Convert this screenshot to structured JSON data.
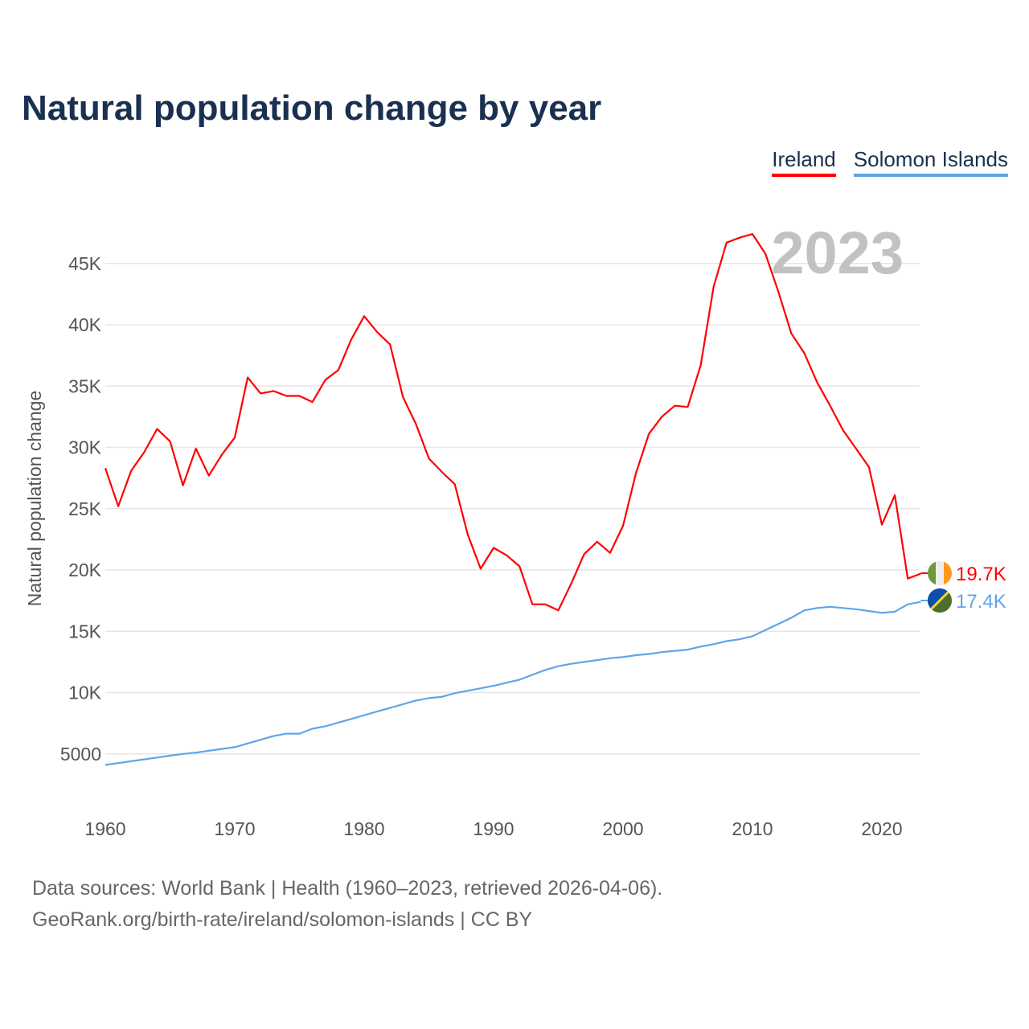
{
  "chart_data": {
    "type": "line",
    "title": "Natural population change by year",
    "ylabel": "Natural population change",
    "xlabel": "",
    "year_badge": "2023",
    "ylim": [
      0,
      47500
    ],
    "xlim": [
      1960,
      2023
    ],
    "grid": true,
    "legend_position": "top-right",
    "yticks": [
      5000,
      10000,
      15000,
      20000,
      25000,
      30000,
      35000,
      40000,
      45000
    ],
    "ytick_labels": [
      "5000",
      "10K",
      "15K",
      "20K",
      "25K",
      "30K",
      "35K",
      "40K",
      "45K"
    ],
    "xticks": [
      1960,
      1970,
      1980,
      1990,
      2000,
      2010,
      2020
    ],
    "xtick_labels": [
      "1960",
      "1970",
      "1980",
      "1990",
      "2000",
      "2010",
      "2020"
    ],
    "x_start": 1960,
    "series": [
      {
        "name": "Ireland",
        "color": "#ff0000",
        "end_label": "19.7K",
        "flag": "ireland-flag",
        "values": [
          28300,
          25200,
          28100,
          29600,
          31500,
          30500,
          26900,
          29900,
          27700,
          29400,
          30800,
          35700,
          34400,
          34600,
          34200,
          34200,
          33700,
          35500,
          36300,
          38800,
          40700,
          39400,
          38400,
          34100,
          31900,
          29100,
          28000,
          27000,
          22900,
          20100,
          21800,
          21200,
          20300,
          17200,
          17200,
          16700,
          18900,
          21300,
          22300,
          21400,
          23600,
          27900,
          31100,
          32500,
          33400,
          33300,
          36700,
          43100,
          46700,
          47100,
          47400,
          45800,
          42700,
          39300,
          37700,
          35300,
          33400,
          31400,
          29900,
          28400,
          23700,
          26100,
          19300,
          19700
        ]
      },
      {
        "name": "Solomon Islands",
        "color": "#5ea6e8",
        "end_label": "17.4K",
        "flag": "solomon-islands-flag",
        "values": [
          4100,
          4250,
          4400,
          4550,
          4700,
          4850,
          5000,
          5100,
          5250,
          5400,
          5550,
          5850,
          6150,
          6450,
          6650,
          6650,
          7050,
          7250,
          7550,
          7850,
          8150,
          8450,
          8750,
          9050,
          9350,
          9550,
          9650,
          9950,
          10150,
          10350,
          10550,
          10800,
          11050,
          11450,
          11850,
          12150,
          12350,
          12500,
          12650,
          12800,
          12900,
          13050,
          13150,
          13300,
          13400,
          13500,
          13750,
          13950,
          14200,
          14350,
          14600,
          15100,
          15600,
          16100,
          16700,
          16900,
          17000,
          16900,
          16800,
          16650,
          16500,
          16600,
          17200,
          17400
        ]
      }
    ]
  },
  "footer": {
    "line1": "Data sources: World Bank | Health (1960–2023, retrieved 2026-04-06).",
    "line2": "GeoRank.org/birth-rate/ireland/solomon-islands | CC BY"
  }
}
